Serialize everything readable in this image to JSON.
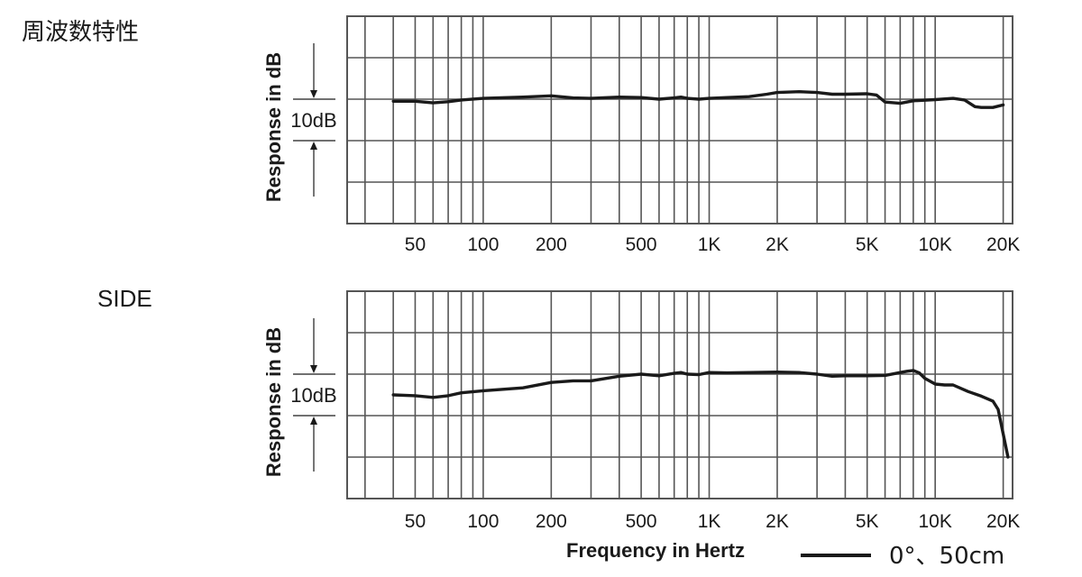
{
  "labels": {
    "top_title": "周波数特性",
    "bottom_title": "SIDE",
    "xlabel": "Frequency in Hertz",
    "legend": "0°、50cm"
  },
  "chart_data": [
    {
      "type": "line",
      "title": "周波数特性",
      "xscale": "log",
      "xlim": [
        25,
        22000
      ],
      "ylim": [
        -30,
        20
      ],
      "ylabel": "Response in dB",
      "scale_marker": "10dB",
      "ticks": [
        {
          "value": 50,
          "label": "50"
        },
        {
          "value": 100,
          "label": "100"
        },
        {
          "value": 200,
          "label": "200"
        },
        {
          "value": 500,
          "label": "500"
        },
        {
          "value": 1000,
          "label": "1K"
        },
        {
          "value": 2000,
          "label": "2K"
        },
        {
          "value": 5000,
          "label": "5K"
        },
        {
          "value": 10000,
          "label": "10K"
        },
        {
          "value": 20000,
          "label": "20K"
        }
      ],
      "gridlines_x": [
        30,
        40,
        50,
        60,
        70,
        80,
        90,
        100,
        200,
        300,
        400,
        500,
        600,
        700,
        800,
        900,
        1000,
        2000,
        3000,
        4000,
        5000,
        6000,
        7000,
        8000,
        9000,
        10000,
        20000
      ],
      "gridlines_y": [
        -20,
        -10,
        0,
        10
      ],
      "series": [
        {
          "line_color": "#1a1a1a",
          "points": [
            [
              40,
              -0.5
            ],
            [
              50,
              -0.5
            ],
            [
              60,
              -0.9
            ],
            [
              70,
              -0.6
            ],
            [
              80,
              -0.2
            ],
            [
              100,
              0.2
            ],
            [
              150,
              0.5
            ],
            [
              200,
              0.8
            ],
            [
              250,
              0.3
            ],
            [
              300,
              0.2
            ],
            [
              400,
              0.5
            ],
            [
              500,
              0.4
            ],
            [
              600,
              0
            ],
            [
              700,
              0.3
            ],
            [
              750,
              0.5
            ],
            [
              800,
              0.2
            ],
            [
              900,
              0
            ],
            [
              1000,
              0.2
            ],
            [
              1200,
              0.4
            ],
            [
              1500,
              0.6
            ],
            [
              1800,
              1.2
            ],
            [
              2000,
              1.6
            ],
            [
              2500,
              1.8
            ],
            [
              3000,
              1.6
            ],
            [
              3500,
              1.2
            ],
            [
              4000,
              1.2
            ],
            [
              5000,
              1.3
            ],
            [
              5500,
              1.0
            ],
            [
              6000,
              -0.7
            ],
            [
              7000,
              -1.0
            ],
            [
              8000,
              -0.4
            ],
            [
              10000,
              -0.1
            ],
            [
              12000,
              0.2
            ],
            [
              13500,
              -0.2
            ],
            [
              15000,
              -1.8
            ],
            [
              16000,
              -2.0
            ],
            [
              18000,
              -2.0
            ],
            [
              20000,
              -1.4
            ]
          ]
        }
      ]
    },
    {
      "type": "line",
      "title": "SIDE",
      "xscale": "log",
      "xlim": [
        25,
        22000
      ],
      "ylim": [
        -30,
        20
      ],
      "xlabel": "Frequency in Hertz",
      "ylabel": "Response in dB",
      "scale_marker": "10dB",
      "ticks": [
        {
          "value": 50,
          "label": "50"
        },
        {
          "value": 100,
          "label": "100"
        },
        {
          "value": 200,
          "label": "200"
        },
        {
          "value": 500,
          "label": "500"
        },
        {
          "value": 1000,
          "label": "1K"
        },
        {
          "value": 2000,
          "label": "2K"
        },
        {
          "value": 5000,
          "label": "5K"
        },
        {
          "value": 10000,
          "label": "10K"
        },
        {
          "value": 20000,
          "label": "20K"
        }
      ],
      "gridlines_x": [
        30,
        40,
        50,
        60,
        70,
        80,
        90,
        100,
        200,
        300,
        400,
        500,
        600,
        700,
        800,
        900,
        1000,
        2000,
        3000,
        4000,
        5000,
        6000,
        7000,
        8000,
        9000,
        10000,
        20000
      ],
      "gridlines_y": [
        -20,
        -10,
        0,
        10
      ],
      "series": [
        {
          "line_color": "#1a1a1a",
          "points": [
            [
              40,
              -5
            ],
            [
              50,
              -5.2
            ],
            [
              60,
              -5.6
            ],
            [
              70,
              -5.2
            ],
            [
              80,
              -4.5
            ],
            [
              100,
              -4.0
            ],
            [
              150,
              -3.3
            ],
            [
              200,
              -2.0
            ],
            [
              250,
              -1.6
            ],
            [
              300,
              -1.6
            ],
            [
              400,
              -0.5
            ],
            [
              500,
              0
            ],
            [
              600,
              -0.4
            ],
            [
              700,
              0.2
            ],
            [
              750,
              0.4
            ],
            [
              800,
              0
            ],
            [
              900,
              -0.1
            ],
            [
              1000,
              0.4
            ],
            [
              1200,
              0.3
            ],
            [
              1500,
              0.4
            ],
            [
              2000,
              0.5
            ],
            [
              2500,
              0.4
            ],
            [
              3000,
              0
            ],
            [
              3500,
              -0.5
            ],
            [
              4000,
              -0.4
            ],
            [
              5000,
              -0.4
            ],
            [
              6000,
              -0.3
            ],
            [
              7000,
              0.4
            ],
            [
              7500,
              0.7
            ],
            [
              8000,
              0.9
            ],
            [
              8500,
              0.3
            ],
            [
              9000,
              -1.0
            ],
            [
              10000,
              -2.4
            ],
            [
              11000,
              -2.6
            ],
            [
              12000,
              -2.6
            ],
            [
              14000,
              -4.2
            ],
            [
              16000,
              -5.3
            ],
            [
              18000,
              -6.5
            ],
            [
              19000,
              -8.5
            ],
            [
              21000,
              -20
            ]
          ]
        }
      ]
    }
  ]
}
